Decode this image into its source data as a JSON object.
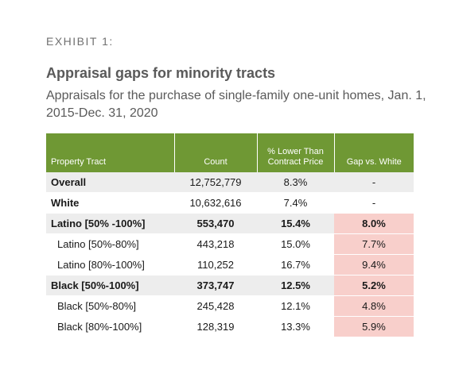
{
  "header": {
    "exhibit": "EXHIBIT 1:",
    "title": "Appraisal gaps for minority tracts",
    "subtitle": "Appraisals for the purchase of single-family one-unit homes, Jan. 1, 2015-Dec. 31, 2020"
  },
  "table": {
    "columns": [
      "Property Tract",
      "Count",
      "% Lower Than Contract Price",
      "Gap vs. White"
    ],
    "rows": [
      {
        "tract": "Overall",
        "count": "12,752,779",
        "pct": "8.3%",
        "gap": "-"
      },
      {
        "tract": "White",
        "count": "10,632,616",
        "pct": "7.4%",
        "gap": "-"
      },
      {
        "tract": "Latino [50% -100%]",
        "count": "553,470",
        "pct": "15.4%",
        "gap": "8.0%"
      },
      {
        "tract": "Latino [50%-80%]",
        "count": "443,218",
        "pct": "15.0%",
        "gap": "7.7%"
      },
      {
        "tract": "Latino [80%-100%]",
        "count": "110,252",
        "pct": "16.7%",
        "gap": "9.4%"
      },
      {
        "tract": "Black [50%-100%]",
        "count": "373,747",
        "pct": "12.5%",
        "gap": "5.2%"
      },
      {
        "tract": "Black [50%-80%]",
        "count": "245,428",
        "pct": "12.1%",
        "gap": "4.8%"
      },
      {
        "tract": "Black [80%-100%]",
        "count": "128,319",
        "pct": "13.3%",
        "gap": "5.9%"
      }
    ]
  },
  "colors": {
    "header_green": "#6f9834",
    "row_shade": "#ededed",
    "gap_highlight": "#f8cfcb",
    "title_gray": "#5a5a5a"
  }
}
